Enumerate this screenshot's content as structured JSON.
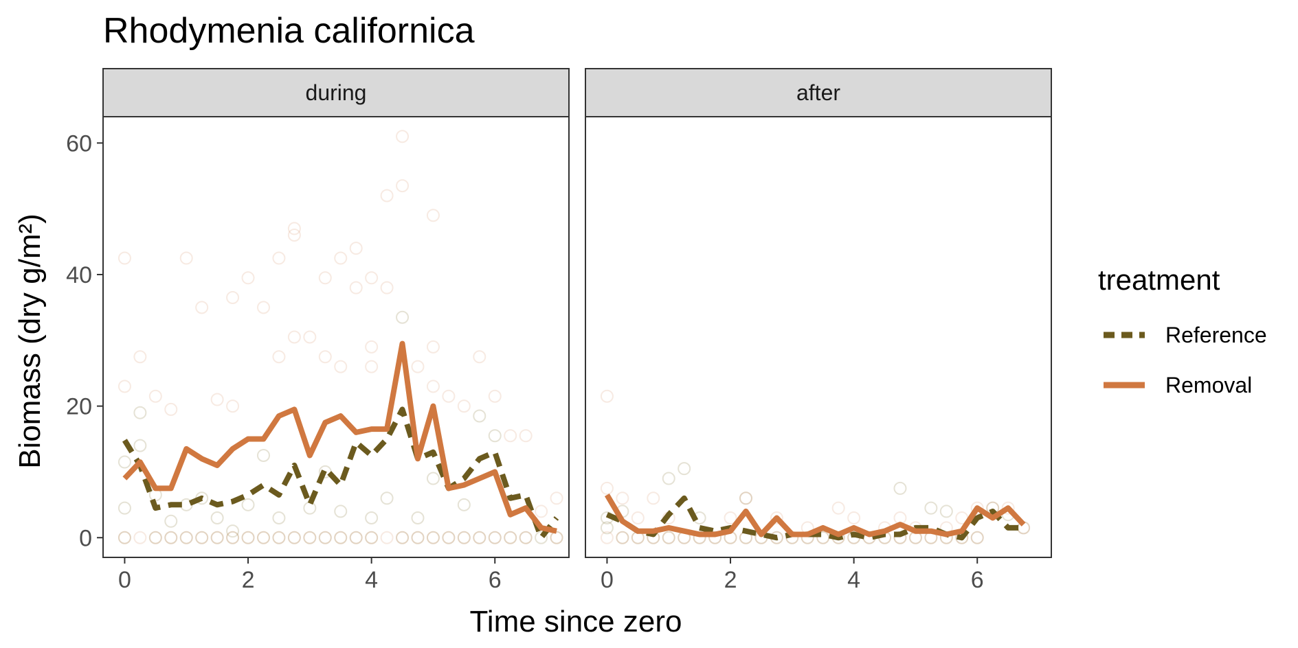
{
  "chart_data": {
    "type": "line",
    "title": "Rhodymenia californica",
    "xlabel": "Time since zero",
    "ylabel": "Biomass (dry g/m²)",
    "xlim": [
      -0.35,
      7.2
    ],
    "ylim": [
      -3,
      64
    ],
    "xticks": [
      0,
      2,
      4,
      6
    ],
    "yticks": [
      0,
      20,
      40,
      60
    ],
    "grid": false,
    "legend": {
      "title": "treatment",
      "position": "right",
      "entries": [
        {
          "label": "Reference",
          "color": "#6b5a1e",
          "dash": "dashed"
        },
        {
          "label": "Removal",
          "color": "#d07840",
          "dash": "solid"
        }
      ]
    },
    "panels": [
      {
        "label": "during",
        "series": [
          {
            "name": "Reference",
            "color": "#6b5a1e",
            "x": [
              0,
              0.25,
              0.5,
              0.75,
              1,
              1.25,
              1.5,
              1.75,
              2,
              2.25,
              2.5,
              2.75,
              3,
              3.25,
              3.5,
              3.75,
              4,
              4.25,
              4.5,
              4.75,
              5,
              5.25,
              5.5,
              5.75,
              6,
              6.25,
              6.5,
              6.75,
              7
            ],
            "y": [
              14.8,
              11.0,
              4.5,
              5.0,
              5.0,
              6.0,
              5.0,
              5.5,
              6.5,
              8.0,
              6.5,
              11.0,
              5.0,
              10.5,
              8.0,
              14.5,
              12.5,
              15.0,
              19.5,
              12.0,
              13.0,
              7.5,
              9.0,
              12.0,
              13.0,
              6.0,
              6.5,
              0.0,
              3.0
            ]
          },
          {
            "name": "Removal",
            "color": "#d07840",
            "x": [
              0,
              0.25,
              0.5,
              0.75,
              1,
              1.25,
              1.5,
              1.75,
              2,
              2.25,
              2.5,
              2.75,
              3,
              3.25,
              3.5,
              3.75,
              4,
              4.25,
              4.5,
              4.75,
              5,
              5.25,
              5.5,
              5.75,
              6,
              6.25,
              6.5,
              6.75,
              7
            ],
            "y": [
              9.0,
              11.5,
              7.5,
              7.5,
              13.5,
              12.0,
              11.0,
              13.5,
              15.0,
              15.0,
              18.5,
              19.5,
              12.5,
              17.5,
              18.5,
              16.0,
              16.5,
              16.5,
              29.5,
              12.0,
              20.0,
              7.5,
              8.0,
              9.0,
              10.0,
              3.5,
              4.5,
              1.5,
              1.0
            ]
          }
        ],
        "observations": {
          "Reference": [
            [
              0,
              0
            ],
            [
              0,
              4.5
            ],
            [
              0,
              11.5
            ],
            [
              0.25,
              19
            ],
            [
              0.25,
              14
            ],
            [
              0.5,
              6.5
            ],
            [
              0.5,
              0
            ],
            [
              0.75,
              0
            ],
            [
              0.75,
              2.5
            ],
            [
              1,
              0
            ],
            [
              1,
              5
            ],
            [
              1.25,
              6
            ],
            [
              1.25,
              0
            ],
            [
              1.5,
              0
            ],
            [
              1.5,
              3
            ],
            [
              1.75,
              0
            ],
            [
              1.75,
              1
            ],
            [
              2,
              0
            ],
            [
              2,
              5
            ],
            [
              2.25,
              12.5
            ],
            [
              2.25,
              0
            ],
            [
              2.5,
              0
            ],
            [
              2.5,
              3
            ],
            [
              2.75,
              0
            ],
            [
              3,
              0
            ],
            [
              3,
              4.5
            ],
            [
              3.25,
              10
            ],
            [
              3.25,
              0
            ],
            [
              3.5,
              0
            ],
            [
              3.5,
              4
            ],
            [
              3.75,
              0
            ],
            [
              4,
              0
            ],
            [
              4,
              3
            ],
            [
              4.25,
              6
            ],
            [
              4.5,
              33.5
            ],
            [
              4.5,
              0
            ],
            [
              4.75,
              0
            ],
            [
              4.75,
              3
            ],
            [
              5,
              0
            ],
            [
              5,
              9
            ],
            [
              5.25,
              0
            ],
            [
              5.5,
              0
            ],
            [
              5.5,
              5
            ],
            [
              5.75,
              18.5
            ],
            [
              5.75,
              0
            ],
            [
              6,
              15.5
            ],
            [
              6,
              0
            ],
            [
              6.25,
              0
            ],
            [
              6.5,
              0
            ],
            [
              6.75,
              0
            ],
            [
              7,
              0
            ]
          ],
          "Removal": [
            [
              0,
              42.5
            ],
            [
              0,
              23
            ],
            [
              0,
              0
            ],
            [
              0.25,
              27.5
            ],
            [
              0.25,
              0
            ],
            [
              0.5,
              21.5
            ],
            [
              0.5,
              0
            ],
            [
              0.75,
              19.5
            ],
            [
              0.75,
              0
            ],
            [
              1,
              42.5
            ],
            [
              1,
              0
            ],
            [
              1.25,
              35
            ],
            [
              1.25,
              0
            ],
            [
              1.5,
              21
            ],
            [
              1.5,
              0
            ],
            [
              1.75,
              36.5
            ],
            [
              1.75,
              20
            ],
            [
              1.75,
              0
            ],
            [
              2,
              39.5
            ],
            [
              2,
              0
            ],
            [
              2.25,
              35
            ],
            [
              2.25,
              0
            ],
            [
              2.5,
              42.5
            ],
            [
              2.5,
              27.5
            ],
            [
              2.5,
              0
            ],
            [
              2.75,
              47
            ],
            [
              2.75,
              46
            ],
            [
              2.75,
              30.5
            ],
            [
              2.75,
              0
            ],
            [
              3,
              30.5
            ],
            [
              3,
              0
            ],
            [
              3.25,
              39.5
            ],
            [
              3.25,
              27.5
            ],
            [
              3.25,
              0
            ],
            [
              3.5,
              42.5
            ],
            [
              3.5,
              26
            ],
            [
              3.5,
              0
            ],
            [
              3.75,
              44
            ],
            [
              3.75,
              38
            ],
            [
              3.75,
              0
            ],
            [
              4,
              39.5
            ],
            [
              4,
              29
            ],
            [
              4,
              26
            ],
            [
              4,
              0
            ],
            [
              4.25,
              52
            ],
            [
              4.25,
              38
            ],
            [
              4.25,
              0
            ],
            [
              4.5,
              61
            ],
            [
              4.5,
              53.5
            ],
            [
              4.5,
              0
            ],
            [
              4.75,
              26
            ],
            [
              4.75,
              0
            ],
            [
              5,
              49
            ],
            [
              5,
              29
            ],
            [
              5,
              23
            ],
            [
              5,
              0
            ],
            [
              5.25,
              21.5
            ],
            [
              5.25,
              0
            ],
            [
              5.5,
              20
            ],
            [
              5.5,
              0
            ],
            [
              5.75,
              27.5
            ],
            [
              5.75,
              0
            ],
            [
              6,
              21.5
            ],
            [
              6,
              0
            ],
            [
              6.25,
              15.5
            ],
            [
              6.25,
              0
            ],
            [
              6.5,
              15.5
            ],
            [
              6.5,
              0
            ],
            [
              6.75,
              4
            ],
            [
              7,
              6
            ],
            [
              7,
              0
            ]
          ]
        }
      },
      {
        "label": "after",
        "series": [
          {
            "name": "Reference",
            "color": "#6b5a1e",
            "x": [
              0,
              0.25,
              0.5,
              0.75,
              1,
              1.25,
              1.5,
              1.75,
              2,
              2.25,
              2.5,
              2.75,
              3,
              3.25,
              3.5,
              3.75,
              4,
              4.25,
              4.5,
              4.75,
              5,
              5.25,
              5.5,
              5.75,
              6,
              6.25,
              6.5,
              6.75
            ],
            "y": [
              3.5,
              2.5,
              1.0,
              0.5,
              3.5,
              6.0,
              1.5,
              1.0,
              1.5,
              1.0,
              0.5,
              0.0,
              0.5,
              0.5,
              0.5,
              0.0,
              0.5,
              0.0,
              0.5,
              0.5,
              1.5,
              1.5,
              0.5,
              0.0,
              3.0,
              4.0,
              1.5,
              1.5
            ]
          },
          {
            "name": "Removal",
            "color": "#d07840",
            "x": [
              0,
              0.25,
              0.5,
              0.75,
              1,
              1.25,
              1.5,
              1.75,
              2,
              2.25,
              2.5,
              2.75,
              3,
              3.25,
              3.5,
              3.75,
              4,
              4.25,
              4.5,
              4.75,
              5,
              5.25,
              5.5,
              5.75,
              6,
              6.25,
              6.5,
              6.75
            ],
            "y": [
              6.5,
              2.5,
              1.0,
              1.0,
              1.5,
              1.0,
              0.5,
              0.5,
              1.0,
              4.0,
              0.5,
              3.0,
              0.5,
              0.5,
              1.5,
              0.5,
              1.5,
              0.5,
              1.0,
              2.0,
              1.0,
              1.0,
              0.5,
              1.0,
              4.5,
              3.0,
              4.5,
              2.0
            ]
          }
        ],
        "observations": {
          "Reference": [
            [
              0,
              1.5
            ],
            [
              0,
              3
            ],
            [
              0.25,
              0
            ],
            [
              0.25,
              4
            ],
            [
              0.5,
              0
            ],
            [
              0.75,
              0
            ],
            [
              1,
              9
            ],
            [
              1,
              0
            ],
            [
              1.25,
              10.5
            ],
            [
              1.25,
              0
            ],
            [
              1.5,
              0
            ],
            [
              1.5,
              3
            ],
            [
              1.75,
              0
            ],
            [
              2,
              0
            ],
            [
              2.25,
              6
            ],
            [
              2.25,
              0
            ],
            [
              2.5,
              0
            ],
            [
              2.75,
              0
            ],
            [
              3,
              0
            ],
            [
              3.25,
              0
            ],
            [
              3.5,
              0
            ],
            [
              3.75,
              0
            ],
            [
              4,
              0
            ],
            [
              4.25,
              0
            ],
            [
              4.5,
              0
            ],
            [
              4.75,
              7.5
            ],
            [
              4.75,
              0
            ],
            [
              5,
              0
            ],
            [
              5.25,
              4.5
            ],
            [
              5.25,
              0
            ],
            [
              5.5,
              0
            ],
            [
              5.5,
              4
            ],
            [
              5.75,
              0
            ],
            [
              6,
              0
            ],
            [
              6.25,
              4.5
            ],
            [
              6.5,
              3.5
            ],
            [
              6.75,
              1.5
            ]
          ],
          "Removal": [
            [
              0,
              21.5
            ],
            [
              0,
              7.5
            ],
            [
              0,
              0
            ],
            [
              0.25,
              6
            ],
            [
              0.25,
              0
            ],
            [
              0.5,
              3
            ],
            [
              0.5,
              0
            ],
            [
              0.75,
              6
            ],
            [
              0.75,
              0
            ],
            [
              1,
              3
            ],
            [
              1,
              0
            ],
            [
              1.25,
              0
            ],
            [
              1.5,
              0
            ],
            [
              1.75,
              0
            ],
            [
              2,
              3
            ],
            [
              2,
              0
            ],
            [
              2.25,
              6
            ],
            [
              2.25,
              0
            ],
            [
              2.5,
              0
            ],
            [
              2.75,
              3
            ],
            [
              2.75,
              0
            ],
            [
              3,
              0
            ],
            [
              3.25,
              1.5
            ],
            [
              3.25,
              0
            ],
            [
              3.5,
              0
            ],
            [
              3.75,
              4.5
            ],
            [
              3.75,
              0
            ],
            [
              4,
              3
            ],
            [
              4,
              0
            ],
            [
              4.25,
              0
            ],
            [
              4.5,
              1.5
            ],
            [
              4.5,
              0
            ],
            [
              4.75,
              3
            ],
            [
              4.75,
              0
            ],
            [
              5,
              1.5
            ],
            [
              5,
              0
            ],
            [
              5.25,
              0
            ],
            [
              5.5,
              1.5
            ],
            [
              5.5,
              0
            ],
            [
              5.75,
              3
            ],
            [
              5.75,
              0
            ],
            [
              6,
              4.5
            ],
            [
              6,
              0
            ],
            [
              6.25,
              4.5
            ],
            [
              6.5,
              4.5
            ],
            [
              6.75,
              1.5
            ]
          ]
        }
      }
    ]
  }
}
